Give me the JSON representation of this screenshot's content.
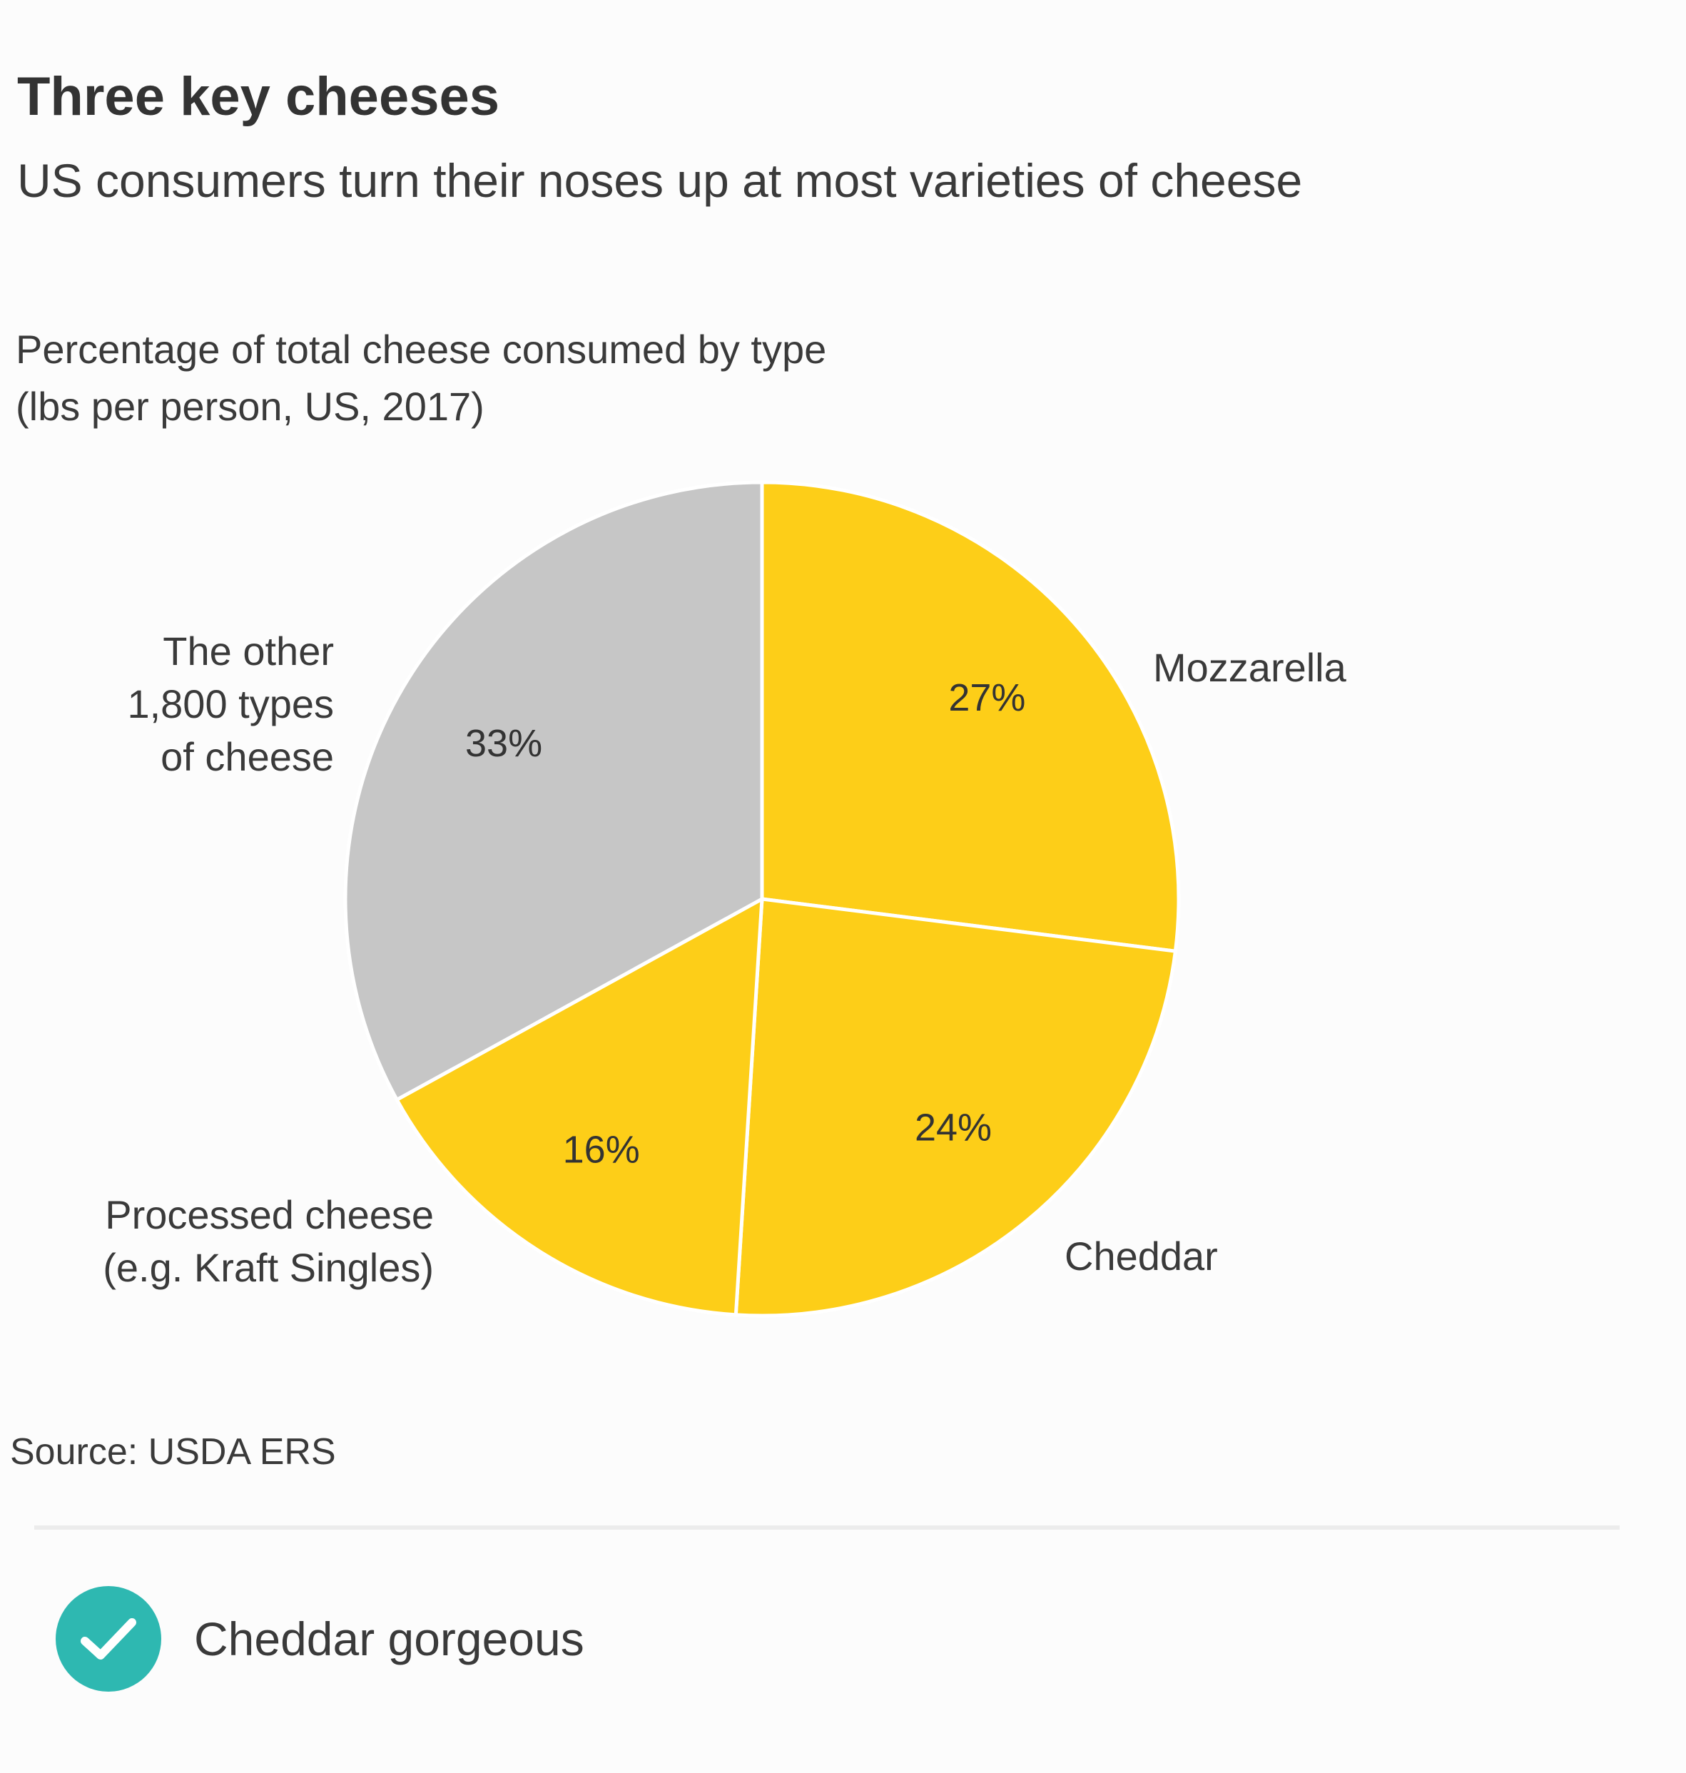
{
  "header": {
    "title": "Three key cheeses",
    "subtitle": "US consumers turn their noses up at most varieties of cheese"
  },
  "caption": {
    "line1": "Percentage of total cheese consumed by type",
    "line2": "(lbs per person, US, 2017)"
  },
  "chart_data": {
    "type": "pie",
    "title": "",
    "slices": [
      {
        "name": "Mozzarella",
        "label_lines": [
          "Mozzarella"
        ],
        "value": 27,
        "value_label": "27%",
        "color": "#fdce18"
      },
      {
        "name": "Cheddar",
        "label_lines": [
          "Cheddar"
        ],
        "value": 24,
        "value_label": "24%",
        "color": "#fdce18"
      },
      {
        "name": "Processed cheese (e.g. Kraft Singles)",
        "label_lines": [
          "Processed cheese",
          "(e.g. Kraft Singles)"
        ],
        "value": 16,
        "value_label": "16%",
        "color": "#fdce18"
      },
      {
        "name": "The other 1,800 types of cheese",
        "label_lines": [
          "The other",
          "1,800 types",
          "of cheese"
        ],
        "value": 33,
        "value_label": "33%",
        "color": "#c6c6c6"
      }
    ],
    "start_angle": "12 o'clock",
    "direction": "clockwise",
    "separator_color": "#ffffff"
  },
  "source": "Source: USDA ERS",
  "footer": {
    "icon": "check-icon",
    "icon_color": "#2eb8b1",
    "text": "Cheddar gorgeous"
  }
}
